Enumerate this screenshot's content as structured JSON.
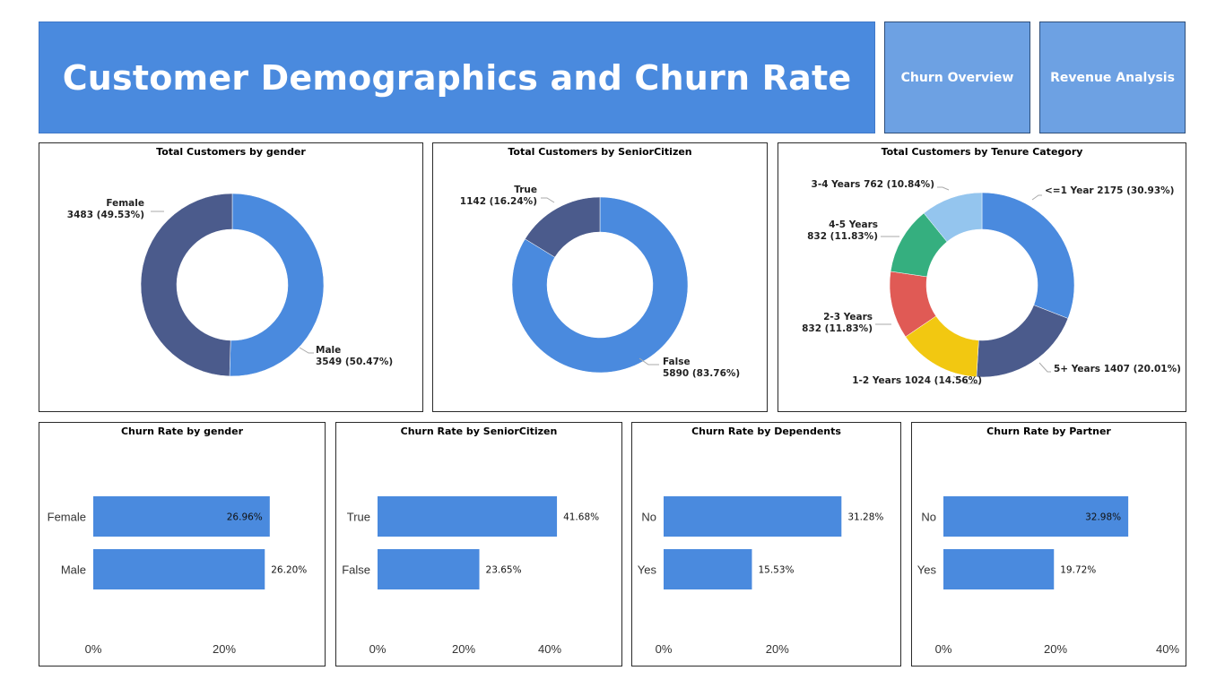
{
  "header": {
    "title": "Customer Demographics and Churn Rate",
    "nav": [
      {
        "label": "Churn Overview"
      },
      {
        "label": "Revenue Analysis"
      }
    ]
  },
  "colors": {
    "banner": "#4a8ade",
    "nav_button": "#6da1e3",
    "bar": "#4a8ade"
  },
  "chart_data": [
    {
      "id": "gender_donut",
      "type": "pie",
      "title": "Total Customers by gender",
      "slices": [
        {
          "label": "Male",
          "value": 3549,
          "pct": "50.47%",
          "color": "#4a8ade",
          "text": [
            "Male",
            "3549 (50.47%)"
          ]
        },
        {
          "label": "Female",
          "value": 3483,
          "pct": "49.53%",
          "color": "#4b5b8c",
          "text": [
            "Female",
            "3483 (49.53%)"
          ]
        }
      ]
    },
    {
      "id": "senior_donut",
      "type": "pie",
      "title": "Total Customers by SeniorCitizen",
      "slices": [
        {
          "label": "False",
          "value": 5890,
          "pct": "83.76%",
          "color": "#4a8ade",
          "text": [
            "False",
            "5890 (83.76%)"
          ]
        },
        {
          "label": "True",
          "value": 1142,
          "pct": "16.24%",
          "color": "#4b5b8c",
          "text": [
            "True",
            "1142 (16.24%)"
          ]
        }
      ]
    },
    {
      "id": "tenure_donut",
      "type": "pie",
      "title": "Total Customers by Tenure Category",
      "slices": [
        {
          "label": "<=1 Year",
          "value": 2175,
          "pct": "30.93%",
          "color": "#4a8ade",
          "text": [
            "<=1 Year 2175 (30.93%)"
          ]
        },
        {
          "label": "5+ Years",
          "value": 1407,
          "pct": "20.01%",
          "color": "#4b5b8c",
          "text": [
            "5+ Years 1407 (20.01%)"
          ]
        },
        {
          "label": "1-2 Years",
          "value": 1024,
          "pct": "14.56%",
          "color": "#f2c811",
          "text": [
            "1-2 Years 1024 (14.56%)"
          ]
        },
        {
          "label": "2-3 Years",
          "value": 832,
          "pct": "11.83%",
          "color": "#e05a55",
          "text": [
            "2-3 Years",
            "832 (11.83%)"
          ]
        },
        {
          "label": "4-5 Years",
          "value": 832,
          "pct": "11.83%",
          "color": "#35af7f",
          "text": [
            "4-5 Years",
            "832 (11.83%)"
          ]
        },
        {
          "label": "3-4 Years",
          "value": 762,
          "pct": "10.84%",
          "color": "#94c5ee",
          "text": [
            "3-4 Years 762 (10.84%)"
          ]
        }
      ]
    },
    {
      "id": "churn_gender",
      "type": "bar",
      "title": "Churn Rate by gender",
      "categories": [
        "Female",
        "Male"
      ],
      "values": [
        26.96,
        26.2
      ],
      "labels": [
        "26.96%",
        "26.20%"
      ],
      "ticks": [
        "0%",
        "20%"
      ],
      "xlim": [
        0,
        30
      ]
    },
    {
      "id": "churn_senior",
      "type": "bar",
      "title": "Churn Rate by SeniorCitizen",
      "categories": [
        "True",
        "False"
      ],
      "values": [
        41.68,
        23.65
      ],
      "labels": [
        "41.68%",
        "23.65%"
      ],
      "ticks": [
        "0%",
        "20%",
        "40%"
      ],
      "xlim": [
        0,
        48
      ]
    },
    {
      "id": "churn_dependents",
      "type": "bar",
      "title": "Churn Rate by Dependents",
      "categories": [
        "No",
        "Yes"
      ],
      "values": [
        31.28,
        15.53
      ],
      "labels": [
        "31.28%",
        "15.53%"
      ],
      "ticks": [
        "0%",
        "20%"
      ],
      "xlim": [
        0,
        37
      ]
    },
    {
      "id": "churn_partner",
      "type": "bar",
      "title": "Churn Rate by Partner",
      "categories": [
        "No",
        "Yes"
      ],
      "values": [
        32.98,
        19.72
      ],
      "labels": [
        "32.98%",
        "19.72%"
      ],
      "ticks": [
        "0%",
        "20%",
        "40%"
      ],
      "xlim": [
        0,
        40
      ]
    }
  ]
}
